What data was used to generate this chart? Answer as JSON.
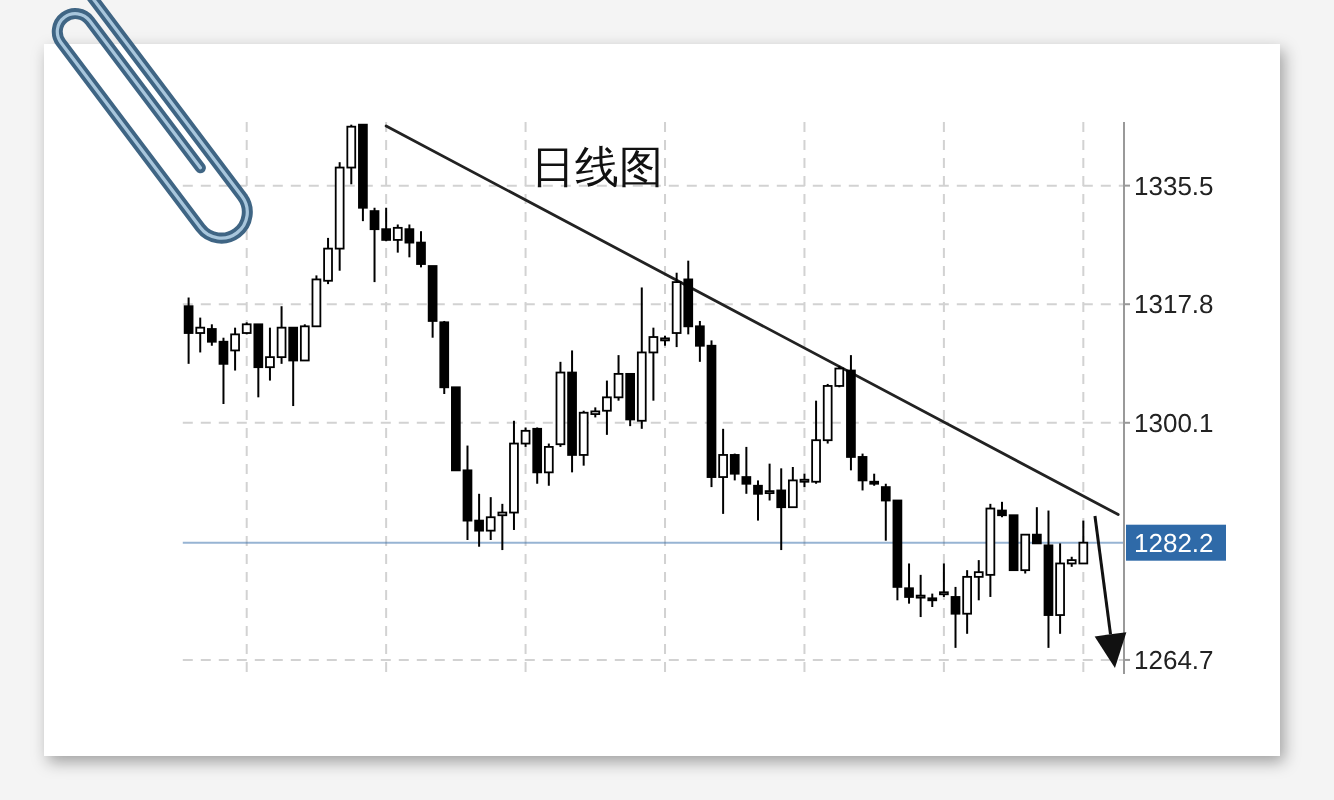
{
  "chart_data": {
    "type": "candlestick",
    "title": "日线图",
    "categories": [
      null,
      null,
      null,
      null,
      null,
      null,
      null,
      null,
      null,
      null,
      null,
      null,
      null,
      null,
      null,
      null,
      null,
      null,
      null,
      null,
      null,
      null,
      null,
      null,
      null,
      null,
      null,
      null,
      null,
      null,
      null,
      null,
      null,
      null,
      null,
      null,
      null,
      null,
      null,
      null,
      null,
      null,
      null,
      null,
      null,
      null,
      null,
      null,
      null,
      null,
      null,
      null,
      null,
      null,
      null,
      null,
      null,
      null,
      null,
      null,
      null,
      null,
      null,
      null,
      null,
      null,
      null,
      null,
      null,
      null,
      null,
      null,
      null,
      null,
      null,
      null,
      null,
      null,
      null,
      null,
      null
    ],
    "ohlc": [
      [
        1317.5,
        1318.8,
        1308.9,
        1313.5
      ],
      [
        1313.5,
        1315.8,
        1310.6,
        1314.3
      ],
      [
        1314.1,
        1314.8,
        1311.6,
        1312.2
      ],
      [
        1312.2,
        1312.8,
        1302.9,
        1308.9
      ],
      [
        1310.9,
        1314.3,
        1307.9,
        1313.3
      ],
      [
        1313.5,
        1315.1,
        1313.3,
        1314.8
      ],
      [
        1314.8,
        1314.8,
        1303.9,
        1308.4
      ],
      [
        1308.4,
        1314.3,
        1306.4,
        1309.9
      ],
      [
        1309.9,
        1317.5,
        1308.9,
        1314.3
      ],
      [
        1314.3,
        1314.3,
        1302.6,
        1309.4
      ],
      [
        1309.4,
        1314.8,
        1309.4,
        1314.5
      ],
      [
        1314.5,
        1322.1,
        1314.5,
        1321.5
      ],
      [
        1321.3,
        1327.7,
        1320.8,
        1326.1
      ],
      [
        1326.1,
        1339.0,
        1322.8,
        1338.2
      ],
      [
        1338.2,
        1344.6,
        1335.7,
        1344.3
      ],
      [
        1344.6,
        1344.6,
        1330.2,
        1332.2
      ],
      [
        1331.7,
        1332.2,
        1321.1,
        1329.0
      ],
      [
        1329.0,
        1332.2,
        1327.2,
        1327.4
      ],
      [
        1327.4,
        1329.7,
        1325.5,
        1329.2
      ],
      [
        1329.0,
        1329.7,
        1324.8,
        1327.0
      ],
      [
        1327.0,
        1328.7,
        1323.3,
        1323.8
      ],
      [
        1323.5,
        1323.5,
        1312.8,
        1315.3
      ],
      [
        1315.1,
        1315.3,
        1304.4,
        1305.4
      ],
      [
        1305.4,
        1305.4,
        1293.0,
        1293.0
      ],
      [
        1293.0,
        1296.7,
        1282.6,
        1285.5
      ],
      [
        1285.5,
        1289.5,
        1281.6,
        1284.0
      ],
      [
        1284.0,
        1289.0,
        1282.6,
        1286.0
      ],
      [
        1286.3,
        1288.0,
        1281.1,
        1286.7
      ],
      [
        1286.7,
        1300.4,
        1284.1,
        1297.0
      ],
      [
        1297.0,
        1299.4,
        1296.5,
        1298.9
      ],
      [
        1299.2,
        1299.4,
        1291.0,
        1292.7
      ],
      [
        1292.7,
        1297.0,
        1290.7,
        1296.5
      ],
      [
        1296.9,
        1309.2,
        1296.5,
        1307.6
      ],
      [
        1307.6,
        1310.9,
        1292.7,
        1295.3
      ],
      [
        1295.3,
        1301.9,
        1293.7,
        1301.6
      ],
      [
        1301.4,
        1302.4,
        1300.9,
        1301.8
      ],
      [
        1301.9,
        1306.4,
        1298.3,
        1303.9
      ],
      [
        1303.9,
        1310.2,
        1303.4,
        1307.4
      ],
      [
        1307.4,
        1307.4,
        1299.6,
        1300.6
      ],
      [
        1300.4,
        1320.3,
        1299.2,
        1310.6
      ],
      [
        1310.6,
        1314.3,
        1303.4,
        1312.9
      ],
      [
        1312.4,
        1313.1,
        1311.6,
        1312.7
      ],
      [
        1313.5,
        1322.5,
        1311.4,
        1321.1
      ],
      [
        1321.5,
        1324.3,
        1313.3,
        1314.5
      ],
      [
        1314.5,
        1315.3,
        1309.2,
        1311.6
      ],
      [
        1311.6,
        1312.4,
        1290.5,
        1292.0
      ],
      [
        1292.0,
        1299.2,
        1286.5,
        1295.3
      ],
      [
        1295.3,
        1295.5,
        1291.5,
        1292.5
      ],
      [
        1292.0,
        1296.5,
        1289.5,
        1291.0
      ],
      [
        1290.7,
        1291.5,
        1285.5,
        1289.5
      ],
      [
        1289.6,
        1294.0,
        1288.5,
        1289.9
      ],
      [
        1290.0,
        1293.3,
        1281.1,
        1287.5
      ],
      [
        1287.5,
        1293.5,
        1287.5,
        1291.5
      ],
      [
        1291.3,
        1292.5,
        1290.5,
        1291.6
      ],
      [
        1291.3,
        1303.4,
        1291.0,
        1297.5
      ],
      [
        1297.5,
        1305.9,
        1297.0,
        1305.6
      ],
      [
        1305.6,
        1308.6,
        1305.4,
        1308.2
      ],
      [
        1307.9,
        1310.2,
        1293.0,
        1295.0
      ],
      [
        1295.0,
        1295.5,
        1290.0,
        1291.5
      ],
      [
        1291.3,
        1292.5,
        1290.7,
        1291.1
      ],
      [
        1290.5,
        1291.0,
        1282.5,
        1288.5
      ],
      [
        1288.5,
        1288.5,
        1273.6,
        1275.6
      ],
      [
        1275.4,
        1279.1,
        1273.1,
        1274.1
      ],
      [
        1274.0,
        1277.4,
        1271.1,
        1274.3
      ],
      [
        1273.9,
        1274.6,
        1272.6,
        1273.7
      ],
      [
        1274.5,
        1279.1,
        1274.1,
        1274.8
      ],
      [
        1274.1,
        1275.6,
        1266.5,
        1271.6
      ],
      [
        1271.6,
        1278.1,
        1268.6,
        1277.1
      ],
      [
        1277.1,
        1279.6,
        1273.6,
        1277.8
      ],
      [
        1277.4,
        1288.0,
        1274.1,
        1287.3
      ],
      [
        1287.0,
        1288.3,
        1286.0,
        1286.3
      ],
      [
        1286.3,
        1286.3,
        1278.1,
        1278.1
      ],
      [
        1278.1,
        1283.5,
        1277.6,
        1283.4
      ],
      [
        1283.4,
        1287.5,
        1282.1,
        1282.1
      ],
      [
        1281.8,
        1287.0,
        1266.5,
        1271.4
      ],
      [
        1271.4,
        1282.1,
        1268.6,
        1279.1
      ],
      [
        1279.1,
        1280.1,
        1278.6,
        1279.6
      ],
      [
        1279.1,
        1285.5,
        1279.1,
        1282.2
      ],
      null,
      null,
      null
    ],
    "color": "#000000",
    "series": [
      {
        "type": "line",
        "color": "#222222",
        "values": [
          null,
          null,
          null,
          null,
          null,
          null,
          null,
          null,
          null,
          null,
          null,
          null,
          null,
          null,
          null,
          null,
          null,
          1344.4,
          null,
          null,
          null,
          null,
          null,
          null,
          null,
          null,
          null,
          null,
          null,
          null,
          null,
          null,
          null,
          null,
          null,
          null,
          null,
          null,
          null,
          null,
          null,
          null,
          null,
          null,
          null,
          null,
          null,
          null,
          null,
          null,
          null,
          null,
          null,
          null,
          null,
          null,
          null,
          null,
          null,
          null,
          null,
          null,
          null,
          null,
          null,
          null,
          null,
          null,
          null,
          null,
          null,
          null,
          null,
          null,
          null,
          null,
          null,
          null,
          null,
          null,
          1286.4
        ]
      }
    ],
    "ylim": [
      1262.6,
      1345.0
    ],
    "yticks": [
      1264.7,
      1300.1,
      1317.8,
      1335.5
    ],
    "ref_lines": [
      {
        "axis": "y",
        "value": 1282.2,
        "label": "1282.2",
        "color": "#2f6aa8"
      }
    ],
    "grid": true,
    "tick_labels": "y"
  }
}
